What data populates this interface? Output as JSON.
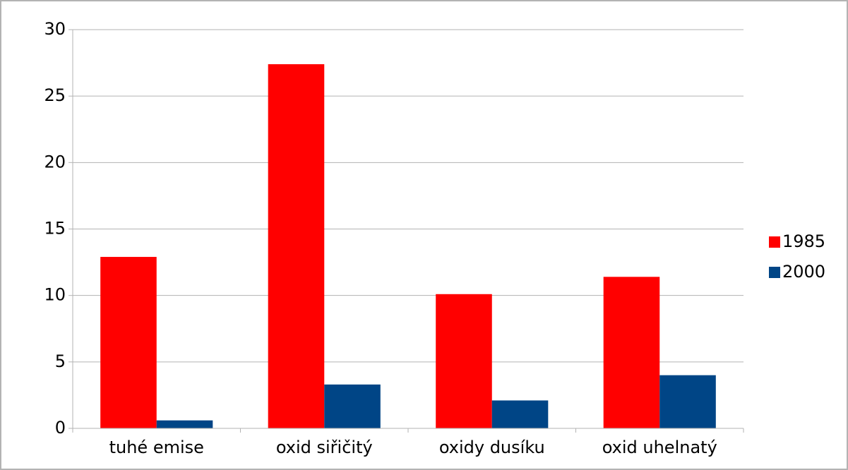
{
  "chart_data": {
    "type": "bar",
    "categories": [
      "tuhé emise",
      "oxid siřičitý",
      "oxidy dusíku",
      "oxid uhelnatý"
    ],
    "series": [
      {
        "name": "1985",
        "color": "#ff0000",
        "values": [
          12.9,
          27.4,
          10.1,
          11.4
        ]
      },
      {
        "name": "2000",
        "color": "#004586",
        "values": [
          0.6,
          3.3,
          2.1,
          4.0
        ]
      }
    ],
    "ylim": [
      0,
      30
    ],
    "yticks": [
      0,
      5,
      10,
      15,
      20,
      25,
      30
    ],
    "grid": true,
    "legend": "right"
  }
}
